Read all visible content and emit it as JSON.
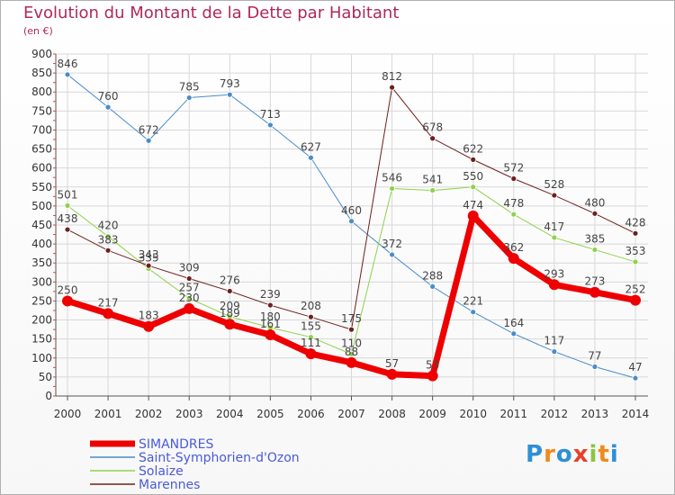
{
  "title": "Evolution du Montant de la Dette par Habitant",
  "subtitle": "(en €)",
  "logo": {
    "text": "Proxiti",
    "letters": [
      "P",
      "r",
      "o",
      "x",
      "i",
      "t",
      "i"
    ],
    "colors": [
      "#2f8fd4",
      "#f08a1c",
      "#2f8fd4",
      "#e8402a",
      "#8bc63f",
      "#f08a1c",
      "#2f8fd4"
    ]
  },
  "chart_data": {
    "type": "line",
    "x": [
      "2000",
      "2001",
      "2002",
      "2003",
      "2004",
      "2005",
      "2006",
      "2007",
      "2008",
      "2009",
      "2010",
      "2011",
      "2012",
      "2013",
      "2014"
    ],
    "yticks": [
      0,
      50,
      100,
      150,
      200,
      250,
      300,
      350,
      400,
      450,
      500,
      550,
      600,
      650,
      700,
      750,
      800,
      850,
      900
    ],
    "ylim": [
      0,
      900
    ],
    "grid": true,
    "legend_position": "bottom-left",
    "series": [
      {
        "name": "Saint-Symphorien-d'Ozon",
        "color": "#4a8cc8",
        "width": 1,
        "values": [
          846,
          760,
          672,
          785,
          793,
          713,
          627,
          460,
          372,
          288,
          221,
          164,
          117,
          77,
          47
        ]
      },
      {
        "name": "Solaize",
        "color": "#8fd24a",
        "width": 1,
        "values": [
          501,
          420,
          335,
          257,
          209,
          180,
          155,
          110,
          546,
          541,
          550,
          478,
          417,
          385,
          353
        ]
      },
      {
        "name": "Marennes",
        "color": "#6e1f1f",
        "width": 1,
        "values": [
          438,
          383,
          343,
          309,
          276,
          239,
          208,
          175,
          812,
          678,
          622,
          572,
          528,
          480,
          428
        ]
      },
      {
        "name": "SIMANDRES",
        "color": "#ee0000",
        "width": 7,
        "values": [
          250,
          217,
          183,
          230,
          189,
          161,
          111,
          88,
          57,
          53,
          474,
          362,
          293,
          273,
          252
        ]
      }
    ],
    "legend_order": [
      3,
      0,
      1,
      2
    ],
    "label_colors": {
      "SIMANDRES": "#e04020"
    }
  }
}
